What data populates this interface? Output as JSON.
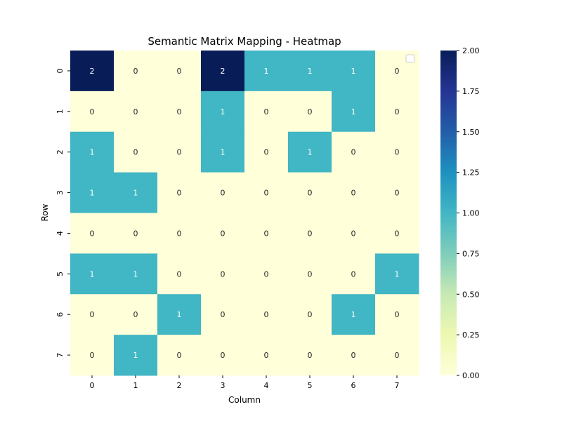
{
  "chart_data": {
    "type": "heatmap",
    "title": "Semantic Matrix Mapping - Heatmap",
    "xlabel": "Column",
    "ylabel": "Row",
    "x_categories": [
      "0",
      "1",
      "2",
      "3",
      "4",
      "5",
      "6",
      "7"
    ],
    "y_categories": [
      "0",
      "1",
      "2",
      "3",
      "4",
      "5",
      "6",
      "7"
    ],
    "values": [
      [
        2,
        0,
        0,
        2,
        1,
        1,
        1,
        0
      ],
      [
        0,
        0,
        0,
        1,
        0,
        0,
        1,
        0
      ],
      [
        1,
        0,
        0,
        1,
        0,
        1,
        0,
        0
      ],
      [
        1,
        1,
        0,
        0,
        0,
        0,
        0,
        0
      ],
      [
        0,
        0,
        0,
        0,
        0,
        0,
        0,
        0
      ],
      [
        1,
        1,
        0,
        0,
        0,
        0,
        0,
        1
      ],
      [
        0,
        0,
        1,
        0,
        0,
        0,
        1,
        0
      ],
      [
        0,
        1,
        0,
        0,
        0,
        0,
        0,
        0
      ]
    ],
    "annotated": true,
    "colormap": "YlGnBu",
    "vmin": 0,
    "vmax": 2,
    "colorbar_ticks": [
      "0.00",
      "0.25",
      "0.50",
      "0.75",
      "1.00",
      "1.25",
      "1.50",
      "1.75",
      "2.00"
    ],
    "colors": {
      "low": "#ffffd9",
      "mid": "#41b6c4",
      "high": "#081d58"
    },
    "legend": "top-right (empty)"
  }
}
